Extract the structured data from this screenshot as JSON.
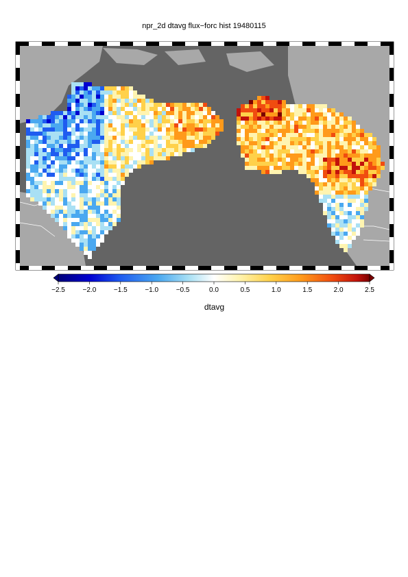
{
  "title": "npr_2d dtavg flux−forc hist 19480115",
  "colorbar": {
    "label": "dtavg",
    "ticks": [
      "−2.5",
      "−2.0",
      "−1.5",
      "−1.0",
      "−0.5",
      "0.0",
      "0.5",
      "1.0",
      "1.5",
      "2.0",
      "2.5"
    ],
    "min": -2.5,
    "max": 2.5,
    "colors": [
      "#00007a",
      "#0000d0",
      "#1f5cf0",
      "#4aa8f0",
      "#a9e0f4",
      "#ffffff",
      "#fff4b0",
      "#ffd14a",
      "#ff9a1a",
      "#f04c10",
      "#c2120b",
      "#7a0000"
    ]
  },
  "colors": {
    "ocean": "#646464",
    "land_nodata": "#a8a8a8",
    "border_dark": "#000000",
    "border_light": "#ffffff"
  }
}
